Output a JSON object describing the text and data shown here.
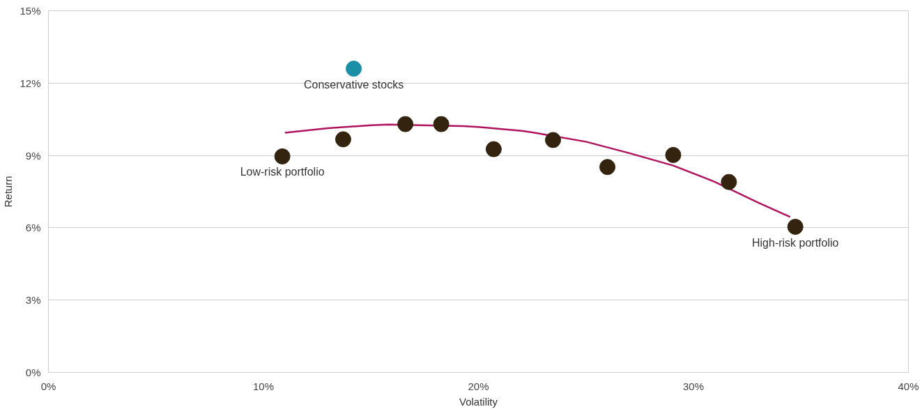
{
  "chart_data": {
    "type": "scatter",
    "xlabel": "Volatility",
    "ylabel": "Return",
    "xlim": [
      0,
      40
    ],
    "ylim": [
      0,
      15
    ],
    "xticks": [
      {
        "value": 0,
        "label": "0%"
      },
      {
        "value": 10,
        "label": "10%"
      },
      {
        "value": 20,
        "label": "20%"
      },
      {
        "value": 30,
        "label": "30%"
      },
      {
        "value": 40,
        "label": "40%"
      }
    ],
    "yticks": [
      {
        "value": 0,
        "label": "0%"
      },
      {
        "value": 3,
        "label": "3%"
      },
      {
        "value": 6,
        "label": "6%"
      },
      {
        "value": 9,
        "label": "9%"
      },
      {
        "value": 12,
        "label": "12%"
      },
      {
        "value": 15,
        "label": "15%"
      }
    ],
    "grid": "y",
    "marker": "circle",
    "series": [
      {
        "color": "#33230f",
        "x": [
          10.88,
          13.71,
          16.6,
          18.27,
          20.71,
          23.47,
          26.0,
          29.06,
          31.65,
          34.74
        ],
        "values": [
          8.96,
          9.67,
          10.3,
          10.3,
          9.26,
          9.64,
          8.52,
          9.02,
          7.9,
          6.04
        ]
      },
      {
        "color": "#1a8fa6",
        "x": [
          14.2
        ],
        "values": [
          12.6
        ]
      },
      {
        "type": "line",
        "color": "#b0125e",
        "marker": "none",
        "x": [
          11.0,
          13.0,
          15.0,
          15.8,
          19.3,
          20.0,
          22.0,
          22.7,
          25.0,
          27.0,
          29.06,
          30.5,
          31.0,
          33.0,
          34.5
        ],
        "values": [
          9.94,
          10.13,
          10.25,
          10.28,
          10.22,
          10.18,
          10.02,
          9.93,
          9.57,
          9.1,
          8.58,
          8.08,
          7.9,
          7.05,
          6.45
        ]
      }
    ],
    "annotations": [
      {
        "text": "Conservative stocks",
        "x": 14.2,
        "y": 12.6
      },
      {
        "text": "Low-risk portfolio",
        "x": 10.88,
        "y": 8.96
      },
      {
        "text": "High-risk portfolio",
        "x": 34.74,
        "y": 6.04
      }
    ]
  }
}
